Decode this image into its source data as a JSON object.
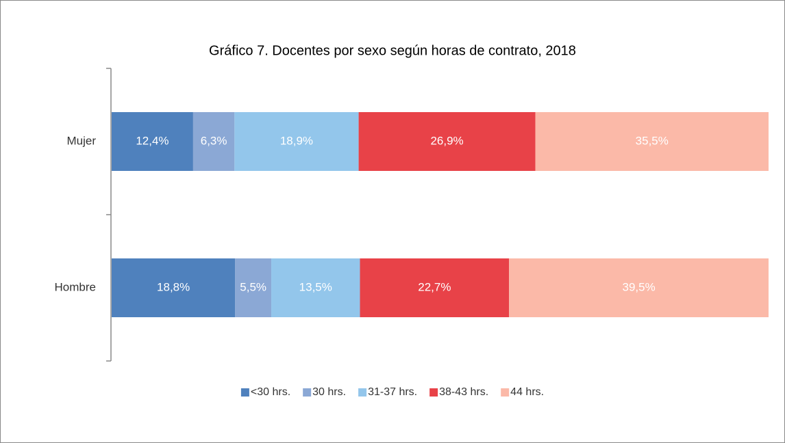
{
  "chart_data": {
    "type": "bar",
    "orientation": "horizontal",
    "stacked": true,
    "title": "Gráfico 7. Docentes por sexo según horas de contrato, 2018",
    "categories": [
      "Mujer",
      "Hombre"
    ],
    "xlim": [
      0,
      100
    ],
    "legend": "bottom",
    "series": [
      {
        "name": "<30 hrs.",
        "color": "#4f81bd",
        "values": [
          12.4,
          18.8
        ],
        "value_labels": [
          "12,4%",
          "18,8%"
        ]
      },
      {
        "name": "30 hrs.",
        "color": "#8ba8d5",
        "values": [
          6.3,
          5.5
        ],
        "value_labels": [
          "6,3%",
          "5,5%"
        ]
      },
      {
        "name": "31-37 hrs.",
        "color": "#93c6eb",
        "values": [
          18.9,
          13.5
        ],
        "value_labels": [
          "18,9%",
          "13,5%"
        ]
      },
      {
        "name": "38-43 hrs.",
        "color": "#e84248",
        "values": [
          26.9,
          22.7
        ],
        "value_labels": [
          "26,9%",
          "22,7%"
        ]
      },
      {
        "name": "44 hrs.",
        "color": "#fbb9a8",
        "values": [
          35.5,
          39.5
        ],
        "value_labels": [
          "35,5%",
          "39,5%"
        ]
      }
    ]
  }
}
